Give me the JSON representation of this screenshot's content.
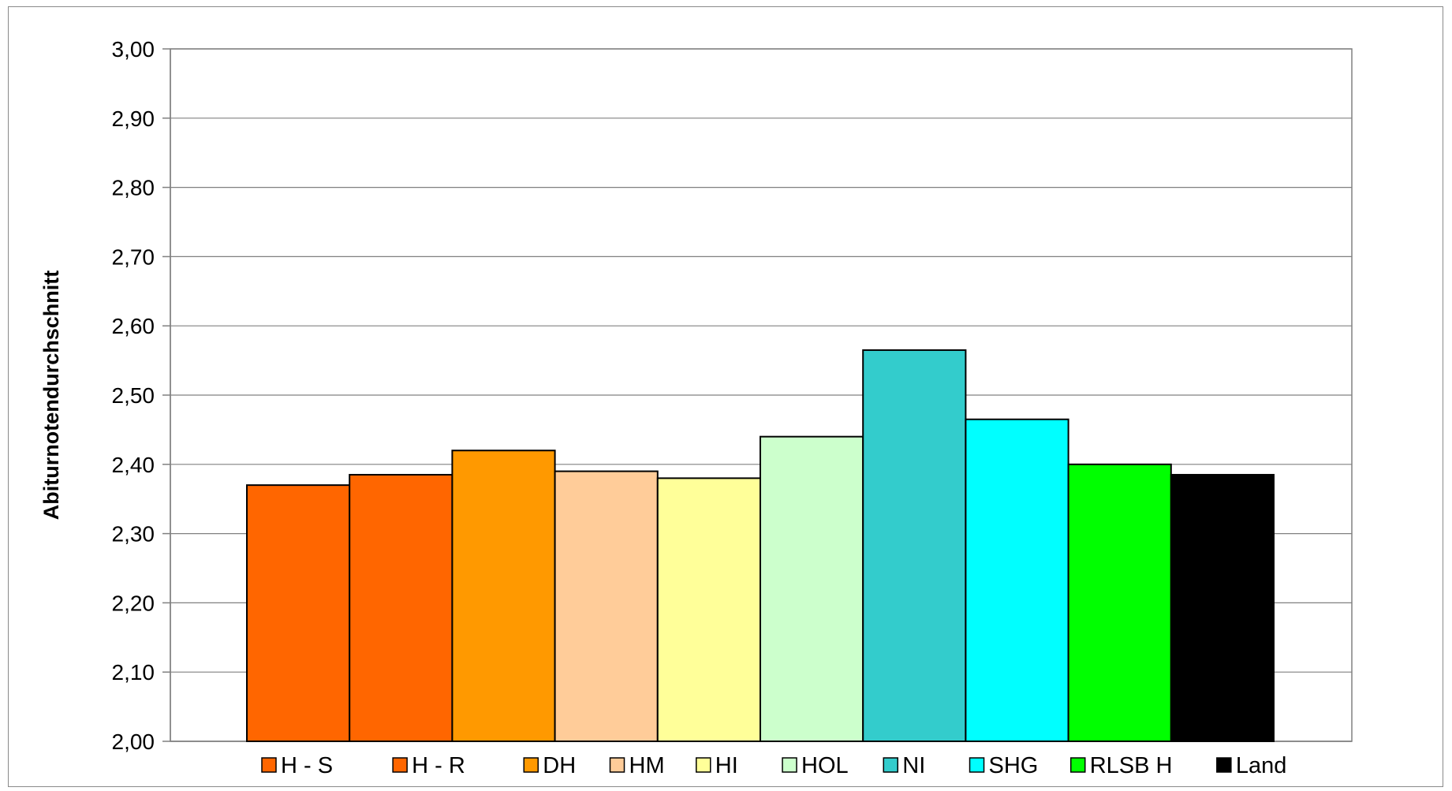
{
  "chart_data": {
    "type": "bar",
    "title": "",
    "xlabel": "",
    "ylabel": "Abiturnotendurchschnitt",
    "ylim": [
      2.0,
      3.0
    ],
    "ytick_step": 0.1,
    "ytick_labels": [
      "2,00",
      "2,10",
      "2,20",
      "2,30",
      "2,40",
      "2,50",
      "2,60",
      "2,70",
      "2,80",
      "2,90",
      "3,00"
    ],
    "grid": true,
    "legend_position": "bottom",
    "categories": [
      "H - S",
      "H - R",
      "DH",
      "HM",
      "HI",
      "HOL",
      "NI",
      "SHG",
      "RLSB H",
      "Land"
    ],
    "values": [
      2.37,
      2.385,
      2.42,
      2.39,
      2.38,
      2.44,
      2.565,
      2.465,
      2.4,
      2.385
    ],
    "colors": [
      "#FF6600",
      "#FF6600",
      "#FF9900",
      "#FFCC99",
      "#FFFF99",
      "#CCFFCC",
      "#33CCCC",
      "#00FFFF",
      "#00FF00",
      "#000000"
    ]
  }
}
